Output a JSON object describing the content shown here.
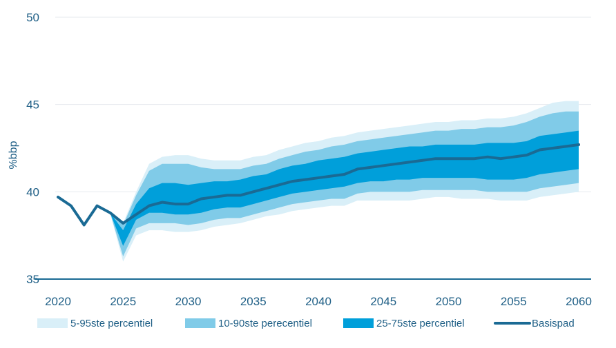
{
  "chart_data": {
    "type": "area",
    "ylabel": "%bbp",
    "xlim": [
      2020,
      2060
    ],
    "ylim": [
      35,
      50
    ],
    "yticks": [
      35,
      40,
      45,
      50
    ],
    "xticks": [
      2020,
      2025,
      2030,
      2035,
      2040,
      2045,
      2050,
      2055,
      2060
    ],
    "grid": "horizontal",
    "legend_position": "bottom",
    "x": [
      2020,
      2021,
      2022,
      2023,
      2024,
      2025,
      2026,
      2027,
      2028,
      2029,
      2030,
      2031,
      2032,
      2033,
      2034,
      2035,
      2036,
      2037,
      2038,
      2039,
      2040,
      2041,
      2042,
      2043,
      2044,
      2045,
      2046,
      2047,
      2048,
      2049,
      2050,
      2051,
      2052,
      2053,
      2054,
      2055,
      2056,
      2057,
      2058,
      2059,
      2060
    ],
    "bands": [
      {
        "name": "5-95ste percentiel",
        "color": "#d9eff8",
        "lower": [
          39.7,
          39.2,
          38.1,
          39.2,
          38.8,
          36.0,
          37.5,
          37.8,
          37.8,
          37.7,
          37.7,
          37.8,
          38.0,
          38.1,
          38.2,
          38.4,
          38.6,
          38.7,
          38.9,
          39.0,
          39.1,
          39.2,
          39.2,
          39.5,
          39.5,
          39.5,
          39.5,
          39.5,
          39.6,
          39.7,
          39.7,
          39.6,
          39.6,
          39.6,
          39.5,
          39.5,
          39.5,
          39.7,
          39.8,
          39.9,
          40.0
        ],
        "upper": [
          39.7,
          39.2,
          38.1,
          39.2,
          38.8,
          38.2,
          40.0,
          41.6,
          42.0,
          42.1,
          42.1,
          41.9,
          41.8,
          41.8,
          41.8,
          42.0,
          42.1,
          42.4,
          42.6,
          42.8,
          42.9,
          43.1,
          43.2,
          43.4,
          43.5,
          43.6,
          43.7,
          43.8,
          43.9,
          44.0,
          44.0,
          44.1,
          44.1,
          44.2,
          44.2,
          44.3,
          44.5,
          44.8,
          45.1,
          45.2,
          45.2
        ]
      },
      {
        "name": "10-90ste perecentiel",
        "color": "#80cbe8",
        "lower": [
          39.7,
          39.2,
          38.1,
          39.2,
          38.8,
          36.3,
          37.9,
          38.2,
          38.2,
          38.2,
          38.1,
          38.2,
          38.4,
          38.5,
          38.5,
          38.7,
          38.9,
          39.1,
          39.3,
          39.4,
          39.5,
          39.6,
          39.6,
          39.9,
          40.0,
          40.0,
          40.0,
          40.0,
          40.1,
          40.1,
          40.1,
          40.1,
          40.1,
          40.0,
          40.0,
          40.0,
          40.0,
          40.2,
          40.3,
          40.4,
          40.5
        ],
        "upper": [
          39.7,
          39.2,
          38.1,
          39.2,
          38.8,
          38.1,
          39.8,
          41.2,
          41.6,
          41.6,
          41.6,
          41.4,
          41.3,
          41.3,
          41.3,
          41.5,
          41.6,
          41.9,
          42.1,
          42.3,
          42.4,
          42.6,
          42.7,
          42.9,
          43.0,
          43.1,
          43.2,
          43.3,
          43.4,
          43.5,
          43.5,
          43.6,
          43.6,
          43.7,
          43.7,
          43.8,
          44.0,
          44.3,
          44.5,
          44.6,
          44.6
        ]
      },
      {
        "name": "25-75ste percentiel",
        "color": "#009fda",
        "lower": [
          39.7,
          39.2,
          38.1,
          39.2,
          38.8,
          36.9,
          38.4,
          38.8,
          38.8,
          38.7,
          38.7,
          38.8,
          39.0,
          39.1,
          39.1,
          39.3,
          39.5,
          39.7,
          39.9,
          40.0,
          40.1,
          40.2,
          40.3,
          40.5,
          40.6,
          40.6,
          40.7,
          40.7,
          40.8,
          40.8,
          40.8,
          40.8,
          40.8,
          40.7,
          40.7,
          40.7,
          40.8,
          41.0,
          41.1,
          41.2,
          41.3
        ],
        "upper": [
          39.7,
          39.2,
          38.1,
          39.2,
          38.8,
          37.8,
          39.3,
          40.2,
          40.5,
          40.5,
          40.4,
          40.5,
          40.6,
          40.6,
          40.7,
          40.9,
          41.0,
          41.3,
          41.5,
          41.6,
          41.8,
          41.9,
          42.0,
          42.2,
          42.3,
          42.4,
          42.5,
          42.6,
          42.6,
          42.7,
          42.7,
          42.7,
          42.7,
          42.8,
          42.8,
          42.8,
          42.9,
          43.2,
          43.3,
          43.4,
          43.5
        ]
      }
    ],
    "series": [
      {
        "name": "Basispad",
        "color": "#1a6a94",
        "values": [
          39.7,
          39.2,
          38.1,
          39.2,
          38.8,
          38.2,
          38.7,
          39.2,
          39.4,
          39.3,
          39.3,
          39.6,
          39.7,
          39.8,
          39.8,
          40.0,
          40.2,
          40.4,
          40.6,
          40.7,
          40.8,
          40.9,
          41.0,
          41.3,
          41.4,
          41.5,
          41.6,
          41.7,
          41.8,
          41.9,
          41.9,
          41.9,
          41.9,
          42.0,
          41.9,
          42.0,
          42.1,
          42.4,
          42.5,
          42.6,
          42.7
        ]
      }
    ],
    "legend": [
      {
        "label": "5-95ste percentiel",
        "kind": "band",
        "color": "#d9eff8"
      },
      {
        "label": "10-90ste perecentiel",
        "kind": "band",
        "color": "#80cbe8"
      },
      {
        "label": "25-75ste percentiel",
        "kind": "band",
        "color": "#009fda"
      },
      {
        "label": "Basispad",
        "kind": "line",
        "color": "#1a6a94"
      }
    ],
    "colors": {
      "text": "#1f5f86",
      "grid": "#e6eaee",
      "axis": "#1a6a94"
    }
  }
}
